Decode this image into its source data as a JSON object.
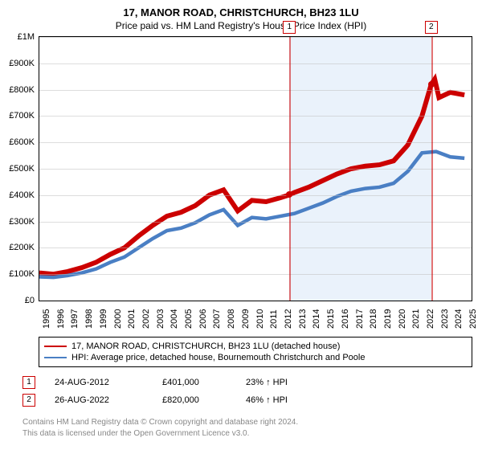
{
  "title": "17, MANOR ROAD, CHRISTCHURCH, BH23 1LU",
  "subtitle": "Price paid vs. HM Land Registry's House Price Index (HPI)",
  "chart": {
    "type": "line",
    "background_color": "#ffffff",
    "grid_color": "#bbbbbb",
    "x_years": [
      1995,
      1996,
      1997,
      1998,
      1999,
      2000,
      2001,
      2002,
      2003,
      2004,
      2005,
      2006,
      2007,
      2008,
      2009,
      2010,
      2011,
      2012,
      2013,
      2014,
      2015,
      2016,
      2017,
      2018,
      2019,
      2020,
      2021,
      2022,
      2023,
      2024,
      2025
    ],
    "xlim": [
      1995,
      2025.5
    ],
    "ylim": [
      0,
      1000000
    ],
    "ytick_step": 100000,
    "ytick_labels": [
      "£0",
      "£100K",
      "£200K",
      "£300K",
      "£400K",
      "£500K",
      "£600K",
      "£700K",
      "£800K",
      "£900K",
      "£1M"
    ],
    "label_fontsize": 11,
    "shaded_region": {
      "start": 2012.65,
      "end": 2022.65,
      "color": "#eaf2fb"
    },
    "series": [
      {
        "name": "price_paid",
        "label": "17, MANOR ROAD, CHRISTCHURCH, BH23 1LU (detached house)",
        "color": "#cc0000",
        "line_width": 2,
        "data": [
          [
            1995,
            105000
          ],
          [
            1996,
            100000
          ],
          [
            1997,
            110000
          ],
          [
            1998,
            125000
          ],
          [
            1999,
            145000
          ],
          [
            2000,
            175000
          ],
          [
            2001,
            200000
          ],
          [
            2002,
            245000
          ],
          [
            2003,
            285000
          ],
          [
            2004,
            320000
          ],
          [
            2005,
            335000
          ],
          [
            2006,
            360000
          ],
          [
            2007,
            400000
          ],
          [
            2008,
            420000
          ],
          [
            2009,
            340000
          ],
          [
            2010,
            380000
          ],
          [
            2011,
            375000
          ],
          [
            2012,
            390000
          ],
          [
            2012.65,
            401000
          ],
          [
            2013,
            410000
          ],
          [
            2014,
            430000
          ],
          [
            2015,
            455000
          ],
          [
            2016,
            480000
          ],
          [
            2017,
            500000
          ],
          [
            2018,
            510000
          ],
          [
            2019,
            515000
          ],
          [
            2020,
            530000
          ],
          [
            2021,
            590000
          ],
          [
            2022,
            700000
          ],
          [
            2022.65,
            820000
          ],
          [
            2022.9,
            840000
          ],
          [
            2023.2,
            770000
          ],
          [
            2024,
            790000
          ],
          [
            2025,
            780000
          ]
        ]
      },
      {
        "name": "hpi",
        "label": "HPI: Average price, detached house, Bournemouth Christchurch and Poole",
        "color": "#4a7fc4",
        "line_width": 1.5,
        "data": [
          [
            1995,
            90000
          ],
          [
            1996,
            88000
          ],
          [
            1997,
            95000
          ],
          [
            1998,
            105000
          ],
          [
            1999,
            120000
          ],
          [
            2000,
            145000
          ],
          [
            2001,
            165000
          ],
          [
            2002,
            200000
          ],
          [
            2003,
            235000
          ],
          [
            2004,
            265000
          ],
          [
            2005,
            275000
          ],
          [
            2006,
            295000
          ],
          [
            2007,
            325000
          ],
          [
            2008,
            345000
          ],
          [
            2009,
            285000
          ],
          [
            2010,
            315000
          ],
          [
            2011,
            310000
          ],
          [
            2012,
            320000
          ],
          [
            2013,
            330000
          ],
          [
            2014,
            350000
          ],
          [
            2015,
            370000
          ],
          [
            2016,
            395000
          ],
          [
            2017,
            415000
          ],
          [
            2018,
            425000
          ],
          [
            2019,
            430000
          ],
          [
            2020,
            445000
          ],
          [
            2021,
            490000
          ],
          [
            2022,
            560000
          ],
          [
            2023,
            565000
          ],
          [
            2024,
            545000
          ],
          [
            2025,
            540000
          ]
        ]
      }
    ],
    "markers": [
      {
        "n": "1",
        "x": 2012.65,
        "y": 401000,
        "color": "#cc0000"
      },
      {
        "n": "2",
        "x": 2022.65,
        "y": 820000,
        "color": "#cc0000"
      }
    ]
  },
  "legend": {
    "items": [
      {
        "color": "#cc0000",
        "label": "17, MANOR ROAD, CHRISTCHURCH, BH23 1LU (detached house)"
      },
      {
        "color": "#4a7fc4",
        "label": "HPI: Average price, detached house, Bournemouth Christchurch and Poole"
      }
    ]
  },
  "sales": [
    {
      "n": "1",
      "date": "24-AUG-2012",
      "price": "£401,000",
      "diff": "23% ↑ HPI"
    },
    {
      "n": "2",
      "date": "26-AUG-2022",
      "price": "£820,000",
      "diff": "46% ↑ HPI"
    }
  ],
  "copyright": {
    "line1": "Contains HM Land Registry data © Crown copyright and database right 2024.",
    "line2": "This data is licensed under the Open Government Licence v3.0."
  }
}
